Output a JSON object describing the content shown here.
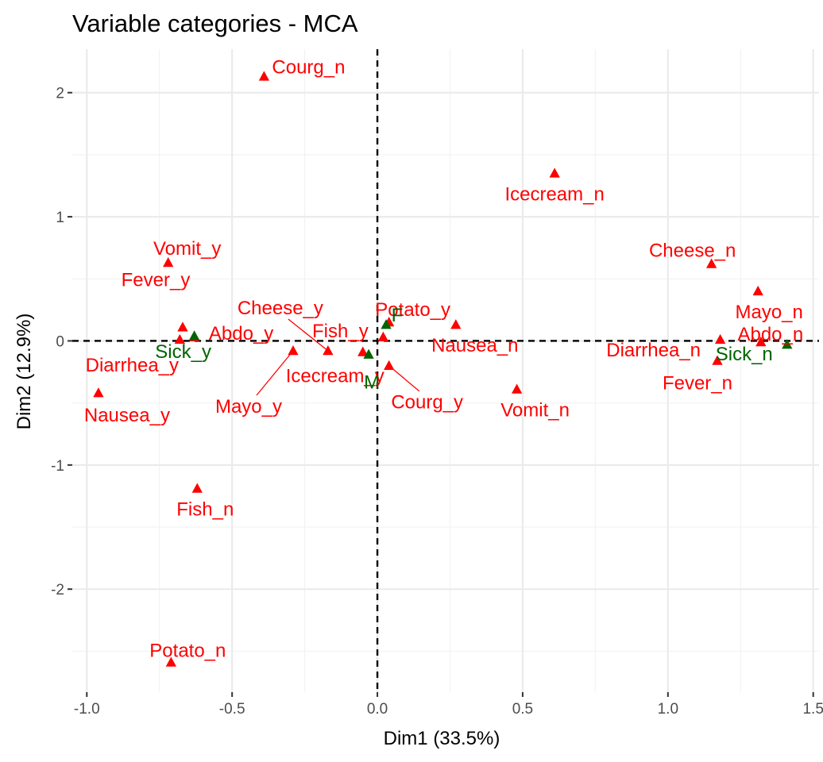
{
  "chart_data": {
    "type": "scatter",
    "title": "Variable categories - MCA",
    "xlabel": "Dim1 (33.5%)",
    "ylabel": "Dim2 (12.9%)",
    "xlim": [
      -1.05,
      1.52
    ],
    "ylim": [
      -2.83,
      2.35
    ],
    "x_ticks": [
      -1.0,
      -0.5,
      0.0,
      0.5,
      1.0,
      1.5
    ],
    "x_tick_labels": [
      "-1.0",
      "-0.5",
      "0.0",
      "0.5",
      "1.0",
      "1.5"
    ],
    "y_ticks": [
      -2,
      -1,
      0,
      1,
      2
    ],
    "y_tick_labels": [
      "-2",
      "-1",
      "0",
      "1",
      "2"
    ],
    "grid": true,
    "reference_lines": {
      "x": 0,
      "y": 0,
      "style": "dashed"
    },
    "colors": {
      "active": "#ff0000",
      "supplementary": "#006400"
    },
    "series": [
      {
        "group": "active",
        "points": [
          {
            "label": "Courg_n",
            "x": -0.39,
            "y": 2.13
          },
          {
            "label": "Icecream_n",
            "x": 0.61,
            "y": 1.35
          },
          {
            "label": "Vomit_y",
            "x": -0.72,
            "y": 0.63
          },
          {
            "label": "Cheese_n",
            "x": 1.15,
            "y": 0.62
          },
          {
            "label": "Mayo_n",
            "x": 1.31,
            "y": 0.4
          },
          {
            "label": "Fever_y",
            "x": -0.67,
            "y": 0.11
          },
          {
            "label": "Potato_y",
            "x": 0.04,
            "y": 0.15
          },
          {
            "label": "Nausea_n",
            "x": 0.27,
            "y": 0.13
          },
          {
            "label": "Diarrhea_n",
            "x": 1.18,
            "y": 0.01
          },
          {
            "label": "Abdo_n",
            "x": 1.32,
            "y": -0.01
          },
          {
            "label": "Abdo_y",
            "x": -0.63,
            "y": 0.03
          },
          {
            "label": "Diarrhea_y",
            "x": -0.68,
            "y": 0.01
          },
          {
            "label": "Fish_y",
            "x": 0.02,
            "y": 0.03
          },
          {
            "label": "Cheese_y",
            "x": -0.17,
            "y": -0.08
          },
          {
            "label": "Icecream_y",
            "x": -0.05,
            "y": -0.09
          },
          {
            "label": "Mayo_y",
            "x": -0.29,
            "y": -0.08
          },
          {
            "label": "Courg_y",
            "x": 0.04,
            "y": -0.2
          },
          {
            "label": "Fever_n",
            "x": 1.17,
            "y": -0.16
          },
          {
            "label": "Nausea_y",
            "x": -0.96,
            "y": -0.42
          },
          {
            "label": "Vomit_n",
            "x": 0.48,
            "y": -0.39
          },
          {
            "label": "Fish_n",
            "x": -0.62,
            "y": -1.19
          },
          {
            "label": "Potato_n",
            "x": -0.71,
            "y": -2.59
          }
        ]
      },
      {
        "group": "supplementary",
        "points": [
          {
            "label": "Sick_y",
            "x": -0.63,
            "y": 0.04
          },
          {
            "label": "Sick_n",
            "x": 1.41,
            "y": -0.03
          },
          {
            "label": "F",
            "x": 0.03,
            "y": 0.13
          },
          {
            "label": "M",
            "x": -0.03,
            "y": -0.11
          }
        ]
      }
    ]
  }
}
